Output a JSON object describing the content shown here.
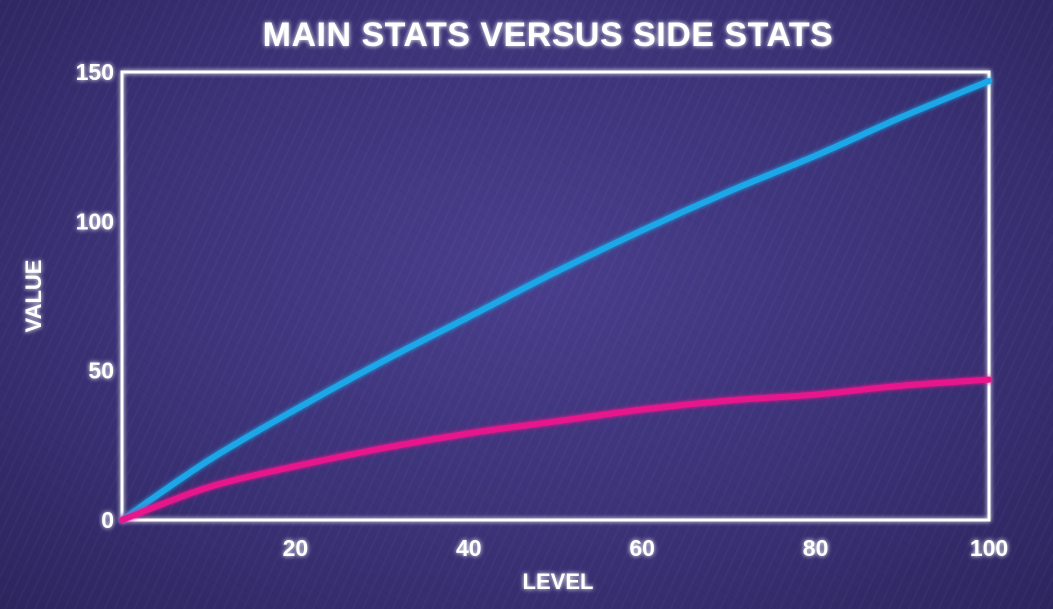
{
  "chart_data": {
    "type": "line",
    "title": "MAIN STATS VERSUS SIDE STATS",
    "xlabel": "LEVEL",
    "ylabel": "VALUE",
    "xlim": [
      0,
      100
    ],
    "ylim": [
      0,
      150
    ],
    "xticks": [
      20,
      40,
      60,
      80,
      100
    ],
    "yticks": [
      0,
      50,
      100,
      150
    ],
    "grid": true,
    "series": [
      {
        "color": "#1ea8e8",
        "x": [
          0,
          10,
          20,
          30,
          40,
          50,
          60,
          70,
          80,
          90,
          100
        ],
        "y": [
          0,
          20,
          37,
          53,
          68,
          83,
          97,
          110,
          122,
          135,
          147
        ]
      },
      {
        "color": "#e8168c",
        "x": [
          0,
          10,
          20,
          30,
          40,
          50,
          60,
          70,
          80,
          90,
          100
        ],
        "y": [
          0,
          11,
          18,
          24,
          29,
          33,
          37,
          40,
          42,
          45,
          47
        ]
      }
    ]
  }
}
